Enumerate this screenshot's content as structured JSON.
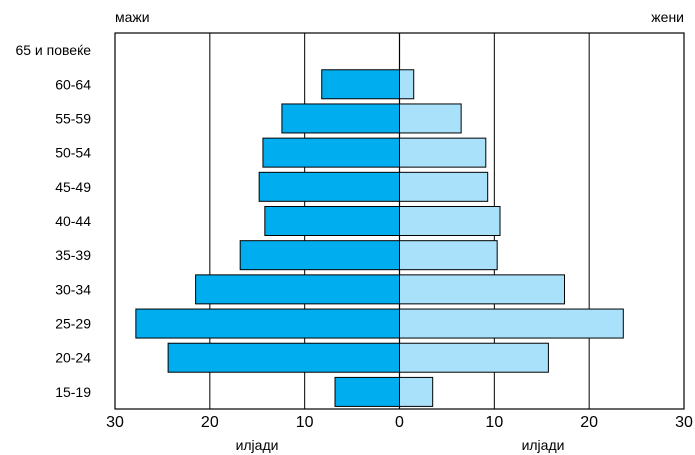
{
  "labels": {
    "left_header": "мажи",
    "right_header": "жени",
    "left_axis_label": "илјади",
    "right_axis_label": "илјади"
  },
  "colors": {
    "male": "#00aeef",
    "female": "#a9e1fb",
    "frame": "#000000",
    "grid": "#000000"
  },
  "chart_data": {
    "type": "bar",
    "orientation": "horizontal-population-pyramid",
    "categories": [
      "65 и повеќе",
      "60-64",
      "55-59",
      "50-54",
      "45-49",
      "40-44",
      "35-39",
      "30-34",
      "25-29",
      "20-24",
      "15-19"
    ],
    "series": [
      {
        "name": "мажи",
        "side": "left",
        "values": [
          0,
          8.2,
          12.4,
          14.4,
          14.8,
          14.2,
          16.8,
          21.5,
          27.8,
          24.4,
          6.8
        ]
      },
      {
        "name": "жени",
        "side": "right",
        "values": [
          0,
          1.5,
          6.5,
          9.1,
          9.3,
          10.6,
          10.3,
          17.4,
          23.6,
          15.7,
          3.5
        ]
      }
    ],
    "xlim": [
      -30,
      30
    ],
    "ticks": [
      -30,
      -20,
      -10,
      0,
      10,
      20,
      30
    ],
    "tick_labels": [
      "30",
      "20",
      "10",
      "0",
      "10",
      "20",
      "30"
    ],
    "xlabel_left": "илјади",
    "xlabel_right": "илјади",
    "grid": true,
    "legend": "none"
  }
}
